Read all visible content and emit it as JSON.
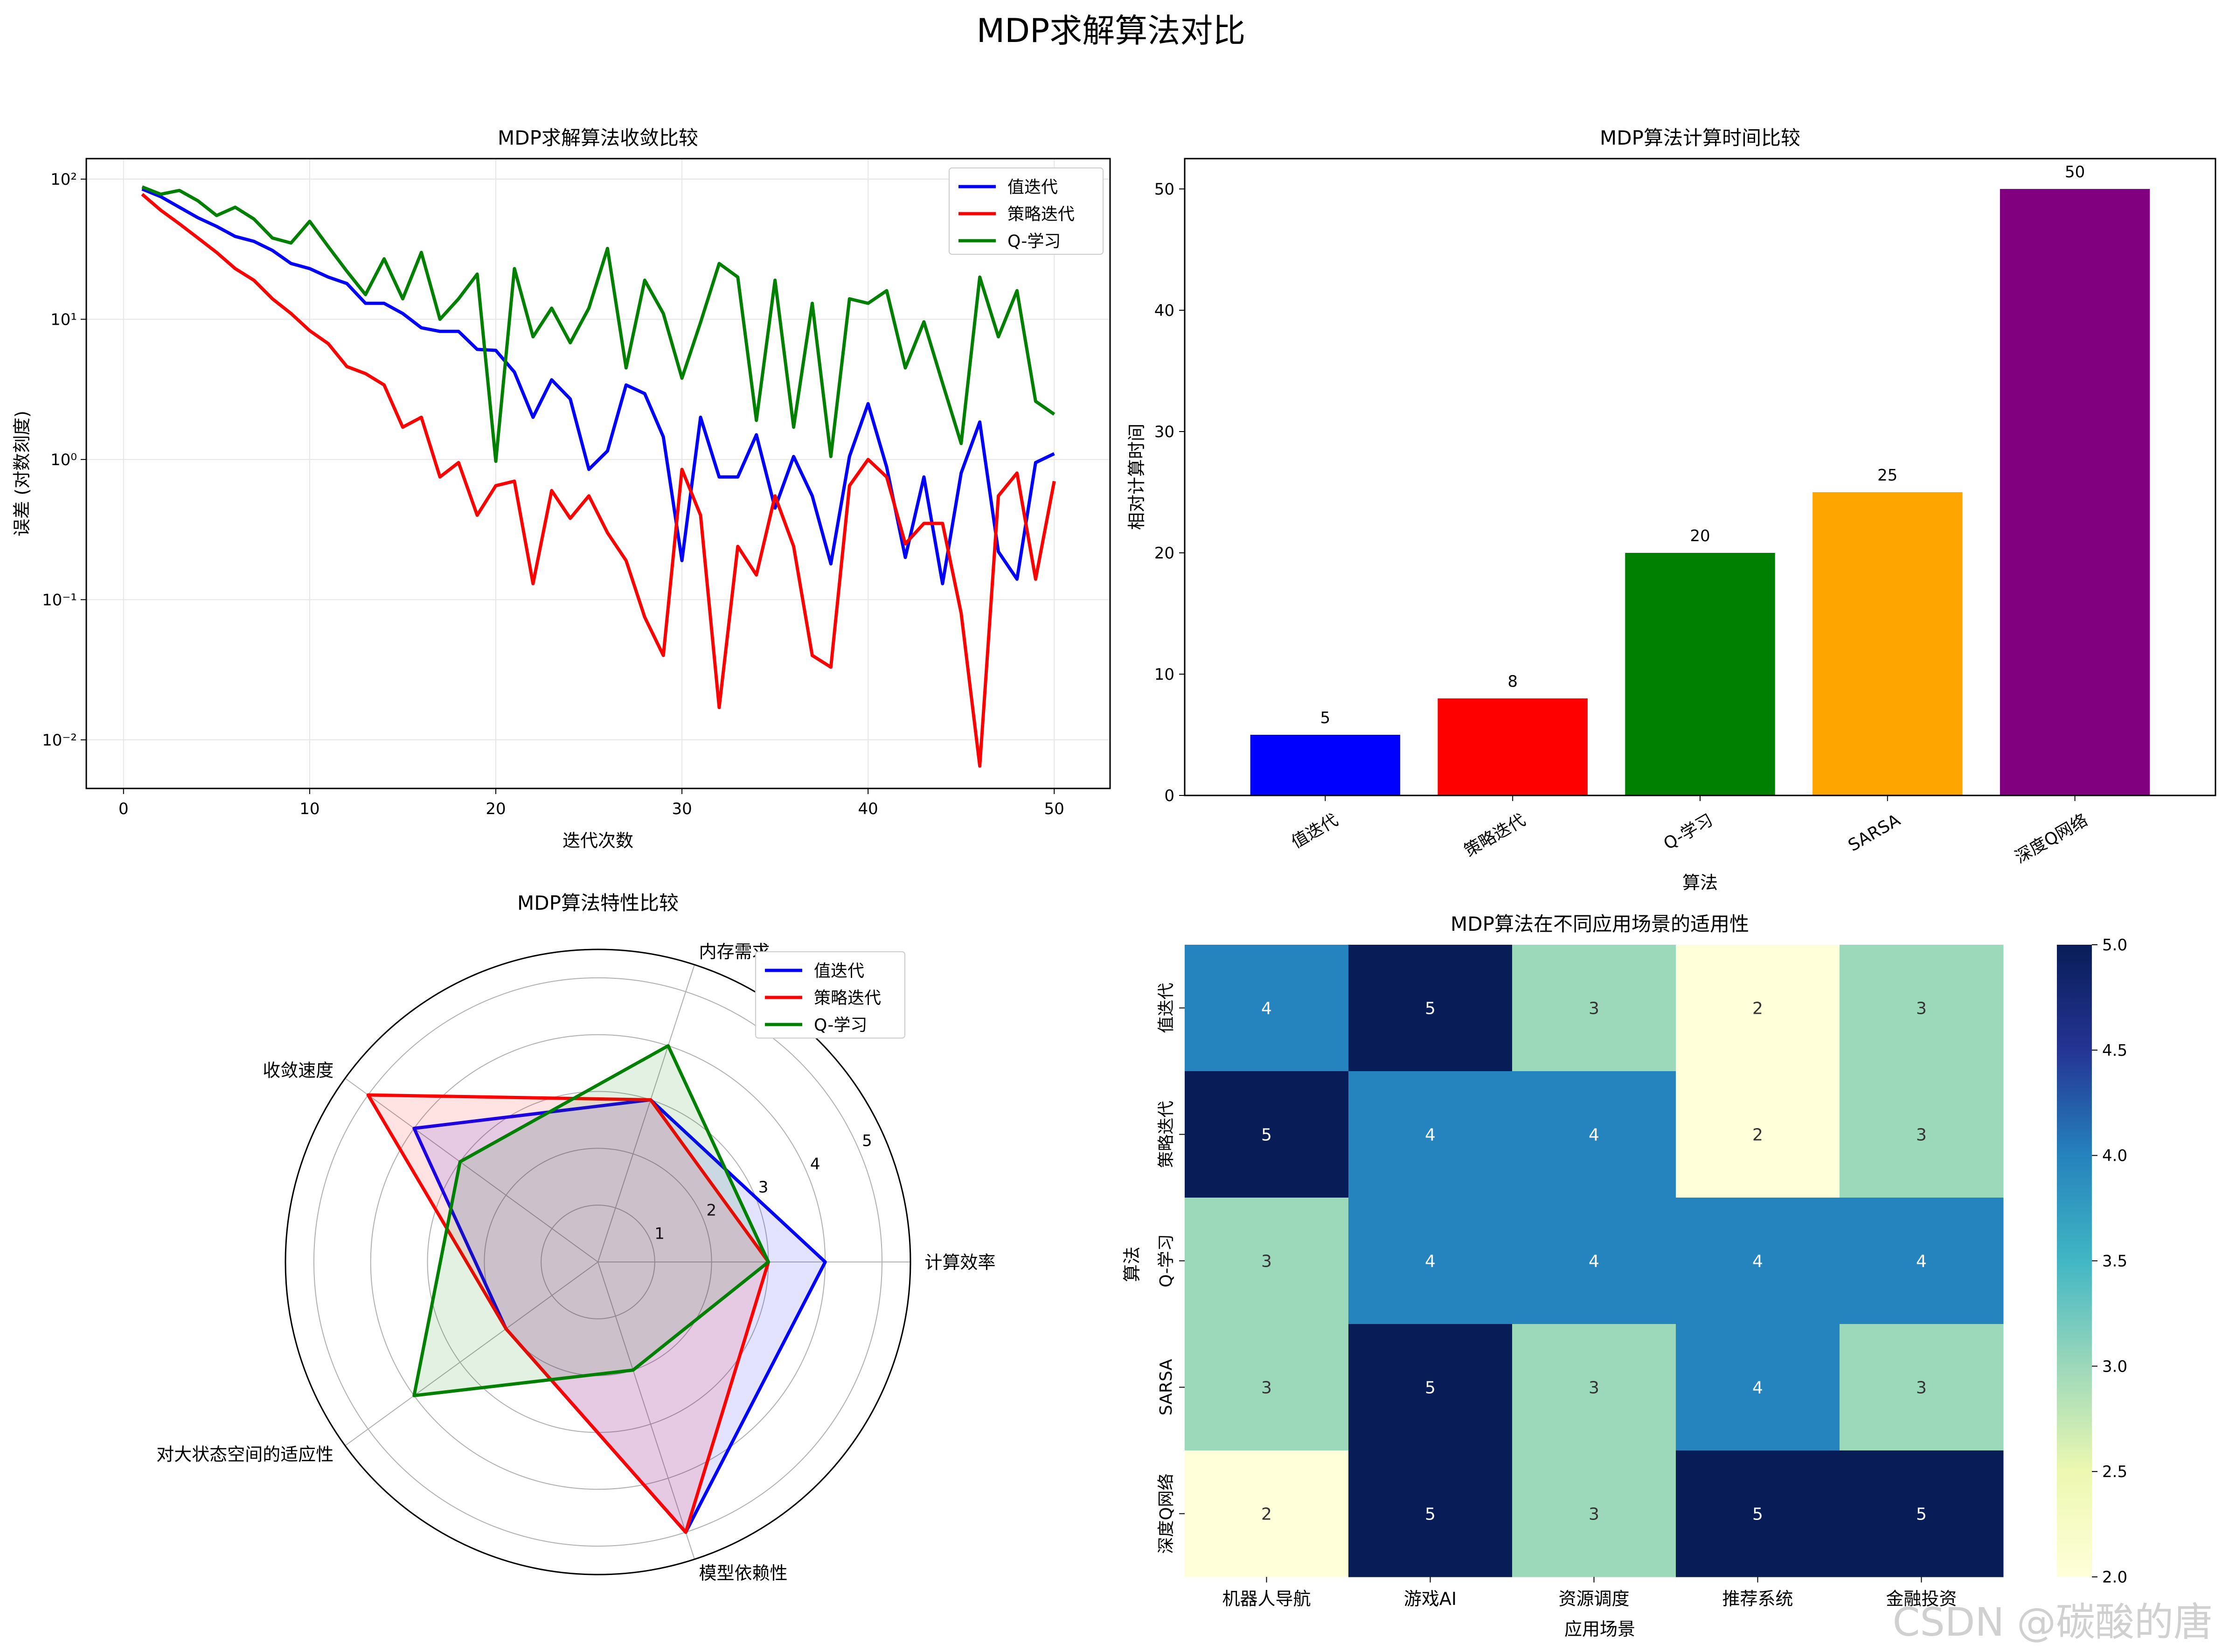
{
  "suptitle": "MDP求解算法对比",
  "watermark": "CSDN @碳酸的唐",
  "colors": {
    "blue": "#0000ff",
    "red": "#ff0000",
    "green": "#008000",
    "orange": "#ffa500",
    "purple": "#800080"
  },
  "chart_data": [
    {
      "type": "line",
      "title": "MDP求解算法收敛比较",
      "xlabel": "迭代次数",
      "ylabel": "误差 (对数刻度)",
      "yscale": "log",
      "xlim": [
        -2,
        53
      ],
      "ylim": [
        0.0045,
        140
      ],
      "grid": true,
      "legend_position": "upper right",
      "xticks": [
        0,
        10,
        20,
        30,
        40,
        50
      ],
      "yticks": [
        {
          "value": 100,
          "label": "10²"
        },
        {
          "value": 10,
          "label": "10¹"
        },
        {
          "value": 1,
          "label": "10⁰"
        },
        {
          "value": 0.1,
          "label": "10⁻¹"
        },
        {
          "value": 0.01,
          "label": "10⁻²"
        }
      ],
      "x": [
        1,
        2,
        3,
        4,
        5,
        6,
        7,
        8,
        9,
        10,
        11,
        12,
        13,
        14,
        15,
        16,
        17,
        18,
        19,
        20,
        21,
        22,
        23,
        24,
        25,
        26,
        27,
        28,
        29,
        30,
        31,
        32,
        33,
        34,
        35,
        36,
        37,
        38,
        39,
        40,
        41,
        42,
        43,
        44,
        45,
        46,
        47,
        48,
        49,
        50
      ],
      "series": [
        {
          "name": "值迭代",
          "color": "#0000ff",
          "values": [
            85,
            75,
            63,
            53,
            46,
            39,
            36,
            31,
            25,
            23,
            20,
            18,
            13,
            13,
            11,
            8.7,
            8.2,
            8.2,
            6.1,
            6.0,
            4.2,
            2.0,
            3.7,
            2.7,
            0.85,
            1.15,
            3.4,
            2.95,
            1.45,
            0.19,
            2.0,
            0.75,
            0.75,
            1.5,
            0.45,
            1.05,
            0.55,
            0.18,
            1.05,
            2.5,
            0.88,
            0.2,
            0.75,
            0.13,
            0.8,
            1.85,
            0.22,
            0.14,
            0.95,
            1.1
          ]
        },
        {
          "name": "策略迭代",
          "color": "#ff0000",
          "values": [
            78,
            60,
            48,
            38,
            30,
            23,
            19,
            14,
            11,
            8.3,
            6.7,
            4.6,
            4.1,
            3.4,
            1.7,
            2.0,
            0.75,
            0.95,
            0.4,
            0.65,
            0.7,
            0.13,
            0.6,
            0.38,
            0.55,
            0.3,
            0.19,
            0.075,
            0.04,
            0.85,
            0.4,
            0.017,
            0.24,
            0.15,
            0.55,
            0.24,
            0.04,
            0.033,
            0.65,
            1.0,
            0.75,
            0.25,
            0.35,
            0.35,
            0.08,
            0.0065,
            0.55,
            0.8,
            0.14,
            0.7
          ]
        },
        {
          "name": "Q-学习",
          "color": "#008000",
          "values": [
            88,
            78,
            83,
            70,
            55,
            63,
            52,
            38,
            35,
            50,
            33,
            22,
            15,
            27,
            14,
            30,
            10,
            14,
            21,
            0.97,
            23,
            7.5,
            12,
            6.8,
            12,
            32,
            4.5,
            19,
            11,
            3.8,
            9.5,
            25,
            20,
            1.9,
            19,
            1.7,
            13,
            1.05,
            14,
            13,
            16,
            4.5,
            9.6,
            3.5,
            1.3,
            20,
            7.5,
            16,
            2.6,
            2.1
          ]
        }
      ]
    },
    {
      "type": "bar",
      "title": "MDP算法计算时间比较",
      "xlabel": "算法",
      "ylabel": "相对计算时间",
      "ylim": [
        0,
        52.5
      ],
      "yticks": [
        0,
        10,
        20,
        30,
        40,
        50
      ],
      "categories": [
        "值迭代",
        "策略迭代",
        "Q-学习",
        "SARSA",
        "深度Q网络"
      ],
      "values": [
        5,
        8,
        20,
        25,
        50
      ],
      "bar_colors": [
        "#0000ff",
        "#ff0000",
        "#008000",
        "#ffa500",
        "#800080"
      ],
      "data_labels": [
        "5",
        "8",
        "20",
        "25",
        "50"
      ]
    },
    {
      "type": "radar",
      "title": "MDP算法特性比较",
      "axes": [
        "计算效率",
        "内存需求",
        "收敛速度",
        "对大状态空间的适应性",
        "模型依赖性"
      ],
      "rmax": 5.5,
      "rticks": [
        1,
        2,
        3,
        4,
        5
      ],
      "legend_position": "upper right",
      "series": [
        {
          "name": "值迭代",
          "color": "#0000ff",
          "values": [
            4,
            3,
            4,
            2,
            5
          ]
        },
        {
          "name": "策略迭代",
          "color": "#ff0000",
          "values": [
            3,
            3,
            5,
            2,
            5
          ]
        },
        {
          "name": "Q-学习",
          "color": "#008000",
          "values": [
            3,
            4,
            3,
            4,
            2
          ]
        }
      ]
    },
    {
      "type": "heatmap",
      "title": "MDP算法在不同应用场景的适用性",
      "xlabel": "应用场景",
      "ylabel": "算法",
      "columns": [
        "机器人导航",
        "游戏AI",
        "资源调度",
        "推荐系统",
        "金融投资"
      ],
      "rows": [
        "值迭代",
        "策略迭代",
        "Q-学习",
        "SARSA",
        "深度Q网络"
      ],
      "values": [
        [
          4,
          5,
          3,
          2,
          3
        ],
        [
          5,
          4,
          4,
          2,
          3
        ],
        [
          3,
          4,
          4,
          4,
          4
        ],
        [
          3,
          5,
          3,
          4,
          3
        ],
        [
          2,
          5,
          3,
          5,
          5
        ]
      ],
      "colormap": "YlGnBu",
      "color_stops": {
        "2": "#ffffd9",
        "3": "#9cd8ba",
        "4": "#2583bd",
        "5": "#081d58"
      },
      "colorbar": {
        "min": 2.0,
        "max": 5.0,
        "ticks": [
          "2.0",
          "2.5",
          "3.0",
          "3.5",
          "4.0",
          "4.5",
          "5.0"
        ]
      }
    }
  ]
}
